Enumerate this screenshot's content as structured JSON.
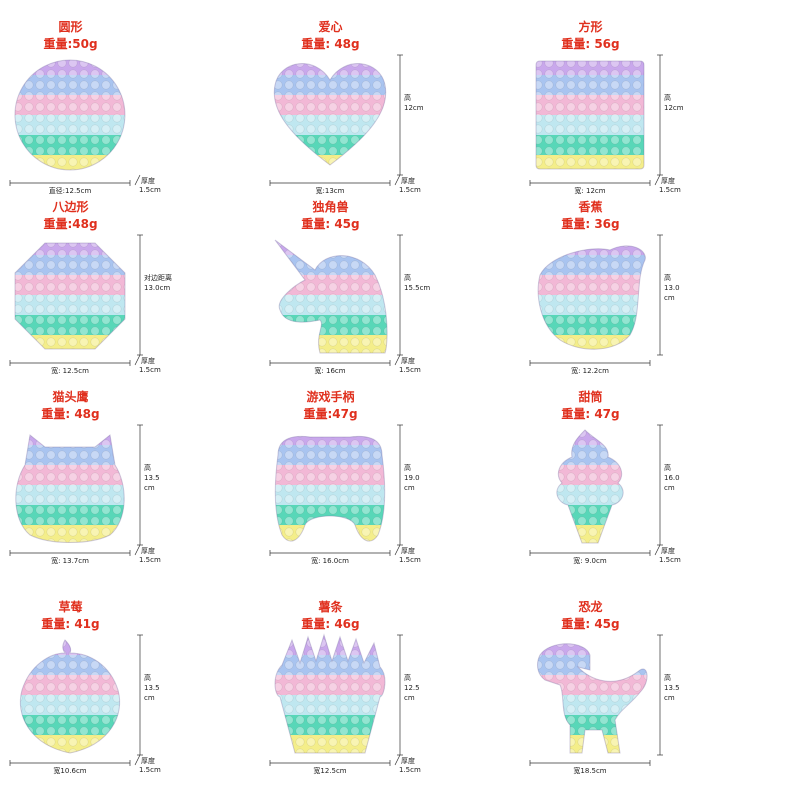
{
  "items": [
    {
      "name": "圆形",
      "weight": "重量:50g",
      "shape": "circle",
      "width_label": "直径:12.5cm",
      "height_label": null,
      "thick_label_1": "厚度",
      "thick_label_2": "1.5cm"
    },
    {
      "name": "爱心",
      "weight": "重量: 48g",
      "shape": "heart",
      "width_label": "宽:13cm",
      "height_label": [
        "高",
        "12cm"
      ],
      "thick_label_1": "厚度",
      "thick_label_2": "1.5cm"
    },
    {
      "name": "方形",
      "weight": "重量: 56g",
      "shape": "square",
      "width_label": "宽: 12cm",
      "height_label": [
        "高",
        "12cm"
      ],
      "thick_label_1": "厚度",
      "thick_label_2": "1.5cm"
    },
    {
      "name": "八边形",
      "weight": "重量:48g",
      "shape": "octagon",
      "width_label": "宽: 12.5cm",
      "height_label": [
        "对边距离",
        "13.0cm"
      ],
      "thick_label_1": "厚度",
      "thick_label_2": "1.5cm"
    },
    {
      "name": "独角兽",
      "weight": "重量: 45g",
      "shape": "unicorn",
      "width_label": "宽: 16cm",
      "height_label": [
        "高",
        "15.5cm"
      ],
      "thick_label_1": "厚度",
      "thick_label_2": "1.5cm"
    },
    {
      "name": "香蕉",
      "weight": "重量: 36g",
      "shape": "banana",
      "width_label": "宽: 12.2cm",
      "height_label": [
        "高",
        "13.0",
        "cm"
      ],
      "thick_label_1": "",
      "thick_label_2": ""
    },
    {
      "name": "猫头鹰",
      "weight": "重量: 48g",
      "shape": "owl",
      "width_label": "宽: 13.7cm",
      "height_label": [
        "高",
        "13.5",
        "cm"
      ],
      "thick_label_1": "厚度",
      "thick_label_2": "1.5cm"
    },
    {
      "name": "游戏手柄",
      "weight": "重量:47g",
      "shape": "gamepad",
      "width_label": "宽: 16.0cm",
      "height_label": [
        "高",
        "19.0",
        "cm"
      ],
      "thick_label_1": "厚度",
      "thick_label_2": "1.5cm"
    },
    {
      "name": "甜筒",
      "weight": "重量: 47g",
      "shape": "icecream",
      "width_label": "宽: 9.0cm",
      "height_label": [
        "高",
        "16.0",
        "cm"
      ],
      "thick_label_1": "厚度",
      "thick_label_2": "1.5cm"
    },
    {
      "name": "草莓",
      "weight": "重量: 41g",
      "shape": "strawberry",
      "width_label": "宽10.6cm",
      "height_label": [
        "高",
        "13.5",
        "cm"
      ],
      "thick_label_1": "厚度",
      "thick_label_2": "1.5cm"
    },
    {
      "name": "薯条",
      "weight": "重量: 46g",
      "shape": "fries",
      "width_label": "宽12.5cm",
      "height_label": [
        "高",
        "12.5",
        "cm"
      ],
      "thick_label_1": "厚度",
      "thick_label_2": "1.5cm"
    },
    {
      "name": "恐龙",
      "weight": "重量: 45g",
      "shape": "dino",
      "width_label": "宽18.5cm",
      "height_label": [
        "高",
        "13.5",
        "cm"
      ],
      "thick_label_1": "",
      "thick_label_2": ""
    }
  ],
  "colors": {
    "title_red": "#e0301e",
    "bands": [
      "#c9a8ec",
      "#a9c4f0",
      "#f2b8d6",
      "#bfe7f0",
      "#58d7b8",
      "#f4ee8a"
    ]
  }
}
